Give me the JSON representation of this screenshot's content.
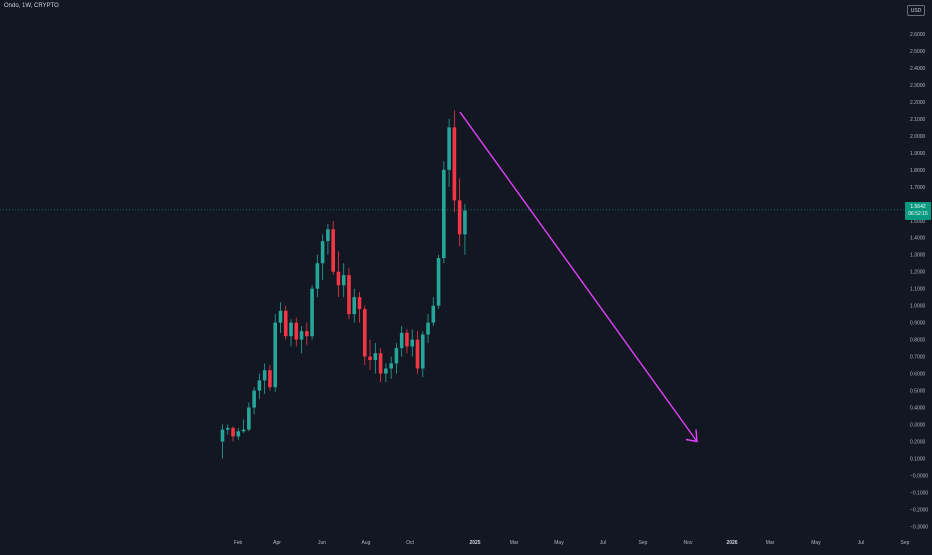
{
  "header": {
    "symbol_title": "Ondo, 1W, CRYPTO",
    "currency": "USD"
  },
  "price_tag": {
    "price": "1.5642",
    "countdown": "06:52:15"
  },
  "colors": {
    "background": "#131722",
    "up": "#26a69a",
    "down": "#f23645",
    "arrow": "#e040fb",
    "axis_text": "#b2b5be",
    "price_line": "#089981"
  },
  "chart_data": {
    "type": "candlestick",
    "title": "Ondo, 1W, CRYPTO",
    "currency": "USD",
    "y_axis": {
      "scale": "linear",
      "range": [
        -0.35,
        2.75
      ],
      "tick_labels": [
        "2.6000",
        "2.5000",
        "2.4000",
        "2.3000",
        "2.2000",
        "2.1000",
        "2.0000",
        "1.9000",
        "1.8000",
        "1.7000",
        "1.6000",
        "1.5000",
        "1.4000",
        "1.3000",
        "1.2000",
        "1.1000",
        "1.0000",
        "0.9000",
        "0.8000",
        "0.7000",
        "0.6000",
        "0.5000",
        "0.4000",
        "0.3000",
        "0.2000",
        "0.1000",
        "−0.0000",
        "−0.1000",
        "−0.2000",
        "−0.3000"
      ]
    },
    "x_axis": {
      "tick_labels": [
        "Feb",
        "Apr",
        "Jun",
        "Aug",
        "Oct",
        "2025",
        "Mar",
        "May",
        "Jul",
        "Sep",
        "Nov",
        "2026",
        "Mar",
        "May",
        "Jul",
        "Sep"
      ],
      "bold_labels": [
        "2025",
        "2026"
      ]
    },
    "last_price": 1.5642,
    "candles": [
      {
        "o": 0.2,
        "h": 0.3,
        "l": 0.1,
        "c": 0.27
      },
      {
        "o": 0.27,
        "h": 0.3,
        "l": 0.24,
        "c": 0.28
      },
      {
        "o": 0.28,
        "h": 0.29,
        "l": 0.2,
        "c": 0.23
      },
      {
        "o": 0.23,
        "h": 0.28,
        "l": 0.21,
        "c": 0.26
      },
      {
        "o": 0.26,
        "h": 0.33,
        "l": 0.25,
        "c": 0.27
      },
      {
        "o": 0.27,
        "h": 0.43,
        "l": 0.26,
        "c": 0.4
      },
      {
        "o": 0.4,
        "h": 0.52,
        "l": 0.36,
        "c": 0.5
      },
      {
        "o": 0.5,
        "h": 0.6,
        "l": 0.45,
        "c": 0.56
      },
      {
        "o": 0.56,
        "h": 0.66,
        "l": 0.48,
        "c": 0.62
      },
      {
        "o": 0.62,
        "h": 0.65,
        "l": 0.5,
        "c": 0.52
      },
      {
        "o": 0.52,
        "h": 0.95,
        "l": 0.49,
        "c": 0.9
      },
      {
        "o": 0.9,
        "h": 1.02,
        "l": 0.84,
        "c": 0.97
      },
      {
        "o": 0.97,
        "h": 1.0,
        "l": 0.8,
        "c": 0.82
      },
      {
        "o": 0.82,
        "h": 0.92,
        "l": 0.76,
        "c": 0.9
      },
      {
        "o": 0.9,
        "h": 0.93,
        "l": 0.76,
        "c": 0.8
      },
      {
        "o": 0.8,
        "h": 0.88,
        "l": 0.72,
        "c": 0.85
      },
      {
        "o": 0.85,
        "h": 0.9,
        "l": 0.77,
        "c": 0.82
      },
      {
        "o": 0.82,
        "h": 1.12,
        "l": 0.8,
        "c": 1.1
      },
      {
        "o": 1.1,
        "h": 1.3,
        "l": 1.05,
        "c": 1.25
      },
      {
        "o": 1.25,
        "h": 1.42,
        "l": 1.15,
        "c": 1.38
      },
      {
        "o": 1.38,
        "h": 1.48,
        "l": 1.3,
        "c": 1.45
      },
      {
        "o": 1.45,
        "h": 1.5,
        "l": 1.18,
        "c": 1.2
      },
      {
        "o": 1.2,
        "h": 1.32,
        "l": 1.05,
        "c": 1.12
      },
      {
        "o": 1.12,
        "h": 1.25,
        "l": 1.05,
        "c": 1.18
      },
      {
        "o": 1.18,
        "h": 1.22,
        "l": 0.92,
        "c": 0.95
      },
      {
        "o": 0.95,
        "h": 1.1,
        "l": 0.9,
        "c": 1.05
      },
      {
        "o": 1.05,
        "h": 1.08,
        "l": 0.9,
        "c": 0.98
      },
      {
        "o": 0.98,
        "h": 1.0,
        "l": 0.65,
        "c": 0.7
      },
      {
        "o": 0.7,
        "h": 0.8,
        "l": 0.62,
        "c": 0.68
      },
      {
        "o": 0.68,
        "h": 0.78,
        "l": 0.6,
        "c": 0.72
      },
      {
        "o": 0.72,
        "h": 0.75,
        "l": 0.55,
        "c": 0.6
      },
      {
        "o": 0.6,
        "h": 0.66,
        "l": 0.55,
        "c": 0.63
      },
      {
        "o": 0.63,
        "h": 0.7,
        "l": 0.57,
        "c": 0.66
      },
      {
        "o": 0.66,
        "h": 0.78,
        "l": 0.6,
        "c": 0.75
      },
      {
        "o": 0.75,
        "h": 0.88,
        "l": 0.7,
        "c": 0.84
      },
      {
        "o": 0.84,
        "h": 0.86,
        "l": 0.72,
        "c": 0.76
      },
      {
        "o": 0.76,
        "h": 0.86,
        "l": 0.7,
        "c": 0.8
      },
      {
        "o": 0.8,
        "h": 0.85,
        "l": 0.6,
        "c": 0.63
      },
      {
        "o": 0.63,
        "h": 0.85,
        "l": 0.58,
        "c": 0.83
      },
      {
        "o": 0.83,
        "h": 0.95,
        "l": 0.78,
        "c": 0.9
      },
      {
        "o": 0.9,
        "h": 1.05,
        "l": 0.88,
        "c": 1.0
      },
      {
        "o": 1.0,
        "h": 1.3,
        "l": 0.98,
        "c": 1.28
      },
      {
        "o": 1.28,
        "h": 1.85,
        "l": 1.25,
        "c": 1.8
      },
      {
        "o": 1.8,
        "h": 2.1,
        "l": 1.7,
        "c": 2.05
      },
      {
        "o": 2.05,
        "h": 2.15,
        "l": 1.55,
        "c": 1.62
      },
      {
        "o": 1.62,
        "h": 1.75,
        "l": 1.35,
        "c": 1.42
      },
      {
        "o": 1.42,
        "h": 1.6,
        "l": 1.3,
        "c": 1.56
      }
    ],
    "arrow": {
      "from": {
        "x": 1,
        "y": 2.14
      },
      "to": {
        "x": 2,
        "y": 0.2
      }
    }
  }
}
